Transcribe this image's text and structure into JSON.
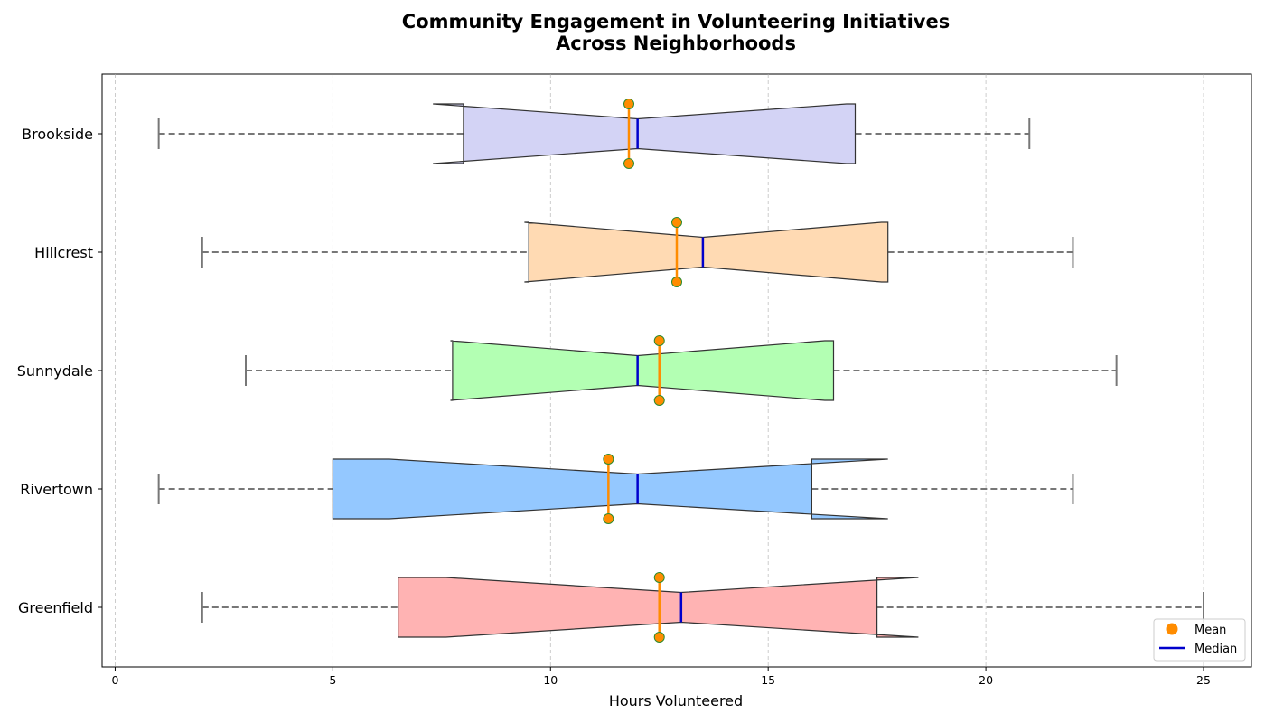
{
  "chart_data": {
    "type": "boxplot",
    "orientation": "horizontal",
    "notched": true,
    "title_lines": [
      "Community Engagement in Volunteering Initiatives",
      "Across Neighborhoods"
    ],
    "xlabel": "Hours Volunteered",
    "ylabel": "",
    "xlim": [
      -0.3,
      26.1
    ],
    "xticks": [
      0,
      5,
      10,
      15,
      20,
      25
    ],
    "grid": {
      "x": true,
      "y": false,
      "style": "dashed"
    },
    "legend": {
      "placement": "lower-right",
      "entries": [
        {
          "label": "Mean",
          "marker": "circle",
          "color": "#ff8c00"
        },
        {
          "label": "Median",
          "marker": "line",
          "color": "#0000cc"
        }
      ]
    },
    "categories": [
      "Brookside",
      "Hillcrest",
      "Sunnydale",
      "Rivertown",
      "Greenfield"
    ],
    "boxes": [
      {
        "name": "Brookside",
        "whisker_low": 1,
        "q1": 8,
        "median": 12,
        "q3": 17,
        "whisker_high": 21,
        "notch_low": 7.3,
        "notch_high": 16.8,
        "mean": 11.8,
        "color": "#d3d3f5"
      },
      {
        "name": "Hillcrest",
        "whisker_low": 2,
        "q1": 9.5,
        "median": 13.5,
        "q3": 17.75,
        "whisker_high": 22,
        "notch_low": 9.4,
        "notch_high": 17.6,
        "mean": 12.9,
        "color": "#ffdab3"
      },
      {
        "name": "Sunnydale",
        "whisker_low": 3,
        "q1": 7.75,
        "median": 12,
        "q3": 16.5,
        "whisker_high": 23,
        "notch_low": 7.7,
        "notch_high": 16.3,
        "mean": 12.5,
        "color": "#b3ffb3"
      },
      {
        "name": "Rivertown",
        "whisker_low": 1,
        "q1": 5,
        "median": 12,
        "q3": 16,
        "whisker_high": 22,
        "notch_low": 6.3,
        "notch_high": 17.75,
        "mean": 11.33,
        "color": "#94c8ff"
      },
      {
        "name": "Greenfield",
        "whisker_low": 2,
        "q1": 6.5,
        "median": 13,
        "q3": 17.5,
        "whisker_high": 25,
        "notch_low": 7.6,
        "notch_high": 18.45,
        "mean": 12.5,
        "color": "#ffb3b3"
      }
    ]
  }
}
